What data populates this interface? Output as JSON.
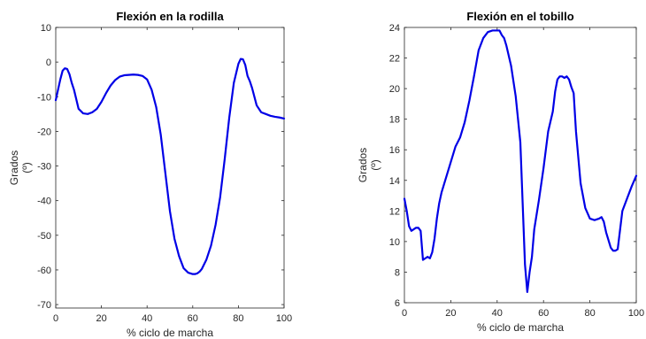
{
  "chart_data": [
    {
      "type": "line",
      "title": "Flexión en la rodilla",
      "xlabel": "% ciclo de marcha",
      "ylabel_lines": [
        "Grados",
        "(º)"
      ],
      "xlim": [
        0,
        100
      ],
      "ylim": [
        -71,
        10
      ],
      "xticks": [
        0,
        20,
        40,
        60,
        80,
        100
      ],
      "yticks": [
        10,
        0,
        -10,
        -20,
        -30,
        -40,
        -50,
        -60,
        -70
      ],
      "grid": false,
      "line_color": "#0000e6",
      "series": [
        {
          "x": [
            0,
            1,
            2,
            3,
            4,
            5,
            6,
            7,
            8,
            10,
            12,
            14,
            16,
            18,
            20,
            22,
            24,
            26,
            28,
            30,
            32,
            34,
            36,
            38,
            40,
            42,
            44,
            46,
            48,
            50,
            52,
            54,
            56,
            58,
            60,
            61,
            62,
            63,
            64,
            66,
            68,
            70,
            72,
            74,
            76,
            78,
            80,
            81,
            82,
            83,
            84,
            85,
            86,
            88,
            90,
            92,
            94,
            96,
            98,
            100
          ],
          "y": [
            -11,
            -8,
            -5,
            -2.5,
            -1.8,
            -2,
            -3.5,
            -6,
            -8,
            -13.5,
            -14.8,
            -15,
            -14.5,
            -13.5,
            -11.5,
            -9,
            -6.8,
            -5.2,
            -4.2,
            -3.8,
            -3.7,
            -3.6,
            -3.7,
            -4,
            -5,
            -8,
            -13,
            -21,
            -32,
            -43,
            -51,
            -56,
            -59.5,
            -60.8,
            -61.2,
            -61.2,
            -61,
            -60.5,
            -59.7,
            -57,
            -53,
            -47,
            -39,
            -28,
            -16,
            -6,
            -0.5,
            0.9,
            0.8,
            -0.8,
            -4,
            -5.5,
            -7.5,
            -12.5,
            -14.5,
            -15,
            -15.5,
            -15.8,
            -16,
            -16.3
          ]
        }
      ]
    },
    {
      "type": "line",
      "title": "Flexión en el tobillo",
      "xlabel": "% ciclo de marcha",
      "ylabel_lines": [
        "Grados",
        "(º)"
      ],
      "xlim": [
        0,
        100
      ],
      "ylim": [
        6,
        24
      ],
      "xticks": [
        0,
        20,
        40,
        60,
        80,
        100
      ],
      "yticks": [
        24,
        22,
        20,
        18,
        16,
        14,
        12,
        10,
        8,
        6
      ],
      "grid": false,
      "line_color": "#0000e6",
      "series": [
        {
          "x": [
            0,
            1,
            2,
            3,
            4,
            5,
            6,
            7,
            8,
            9,
            10,
            11,
            12,
            13,
            14,
            15,
            16,
            17,
            18,
            20,
            22,
            24,
            26,
            28,
            30,
            32,
            34,
            36,
            38,
            40,
            41,
            42,
            43,
            44,
            46,
            48,
            50,
            51,
            52,
            53,
            54,
            55,
            56,
            58,
            60,
            62,
            64,
            65,
            66,
            67,
            68,
            69,
            70,
            71,
            72,
            73,
            74,
            76,
            78,
            80,
            82,
            84,
            85,
            86,
            87,
            88,
            89,
            90,
            91,
            92,
            94,
            96,
            98,
            100
          ],
          "y": [
            12.8,
            12,
            11,
            10.7,
            10.8,
            10.9,
            10.9,
            10.7,
            8.8,
            8.9,
            9,
            8.9,
            9.3,
            10.2,
            11.5,
            12.5,
            13.2,
            13.7,
            14.2,
            15.2,
            16.2,
            16.8,
            17.8,
            19.2,
            20.8,
            22.5,
            23.3,
            23.7,
            23.8,
            23.8,
            23.8,
            23.5,
            23.3,
            22.8,
            21.5,
            19.5,
            16.5,
            12.5,
            8.5,
            6.7,
            8,
            9,
            10.8,
            12.7,
            14.8,
            17.2,
            18.5,
            19.8,
            20.6,
            20.8,
            20.8,
            20.7,
            20.8,
            20.6,
            20.1,
            19.7,
            17.2,
            13.8,
            12.2,
            11.5,
            11.4,
            11.5,
            11.6,
            11.3,
            10.6,
            10.1,
            9.6,
            9.4,
            9.4,
            9.5,
            12,
            12.8,
            13.6,
            14.3
          ]
        }
      ]
    }
  ]
}
